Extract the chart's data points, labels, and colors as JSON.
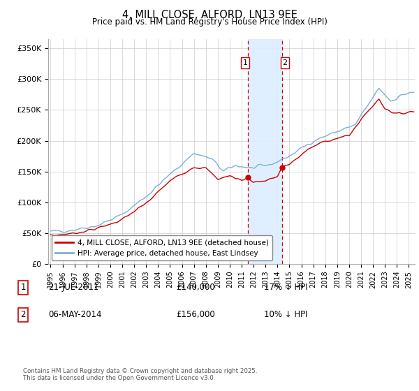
{
  "title": "4, MILL CLOSE, ALFORD, LN13 9EE",
  "subtitle": "Price paid vs. HM Land Registry's House Price Index (HPI)",
  "ylabel_ticks": [
    "£0",
    "£50K",
    "£100K",
    "£150K",
    "£200K",
    "£250K",
    "£300K",
    "£350K"
  ],
  "ytick_values": [
    0,
    50000,
    100000,
    150000,
    200000,
    250000,
    300000,
    350000
  ],
  "ylim": [
    0,
    365000
  ],
  "xlim_start": 1994.8,
  "xlim_end": 2025.5,
  "line1_color": "#cc0000",
  "line2_color": "#7ab0d4",
  "shade_color": "#ddeeff",
  "vline_color": "#cc0000",
  "marker1_x": 2011.55,
  "marker2_x": 2014.37,
  "marker1_y": 140000,
  "marker2_y": 156000,
  "legend_label1": "4, MILL CLOSE, ALFORD, LN13 9EE (detached house)",
  "legend_label2": "HPI: Average price, detached house, East Lindsey",
  "table_rows": [
    {
      "num": "1",
      "date": "21-JUL-2011",
      "price": "£140,000",
      "hpi": "17% ↓ HPI"
    },
    {
      "num": "2",
      "date": "06-MAY-2014",
      "price": "£156,000",
      "hpi": "10% ↓ HPI"
    }
  ],
  "footer": "Contains HM Land Registry data © Crown copyright and database right 2025.\nThis data is licensed under the Open Government Licence v3.0.",
  "grid_color": "#cccccc",
  "hpi_base": {
    "1995.0": 52000,
    "1997.0": 56000,
    "1999.0": 63000,
    "2001.0": 80000,
    "2003.0": 110000,
    "2005.0": 145000,
    "2007.0": 180000,
    "2008.5": 170000,
    "2009.5": 150000,
    "2010.5": 160000,
    "2012.0": 155000,
    "2013.5": 162000,
    "2015.0": 175000,
    "2017.0": 200000,
    "2019.0": 215000,
    "2020.5": 225000,
    "2021.5": 255000,
    "2022.5": 285000,
    "2023.5": 265000,
    "2024.5": 275000,
    "2025.4": 278000
  },
  "price_base": {
    "1995.0": 46000,
    "1997.0": 50000,
    "1999.0": 58000,
    "2001.0": 72000,
    "2003.0": 98000,
    "2005.0": 135000,
    "2007.0": 158000,
    "2008.0": 155000,
    "2009.0": 138000,
    "2010.0": 143000,
    "2011.0": 136000,
    "2011.55": 140000,
    "2012.0": 133000,
    "2013.0": 135000,
    "2014.0": 142000,
    "2014.37": 156000,
    "2015.0": 162000,
    "2016.5": 185000,
    "2018.0": 200000,
    "2020.0": 208000,
    "2021.0": 235000,
    "2022.5": 268000,
    "2023.0": 253000,
    "2024.0": 243000,
    "2025.3": 248000
  },
  "hpi_noise_seed": 42,
  "price_noise_seed": 7,
  "hpi_noise_scale": 3500,
  "price_noise_scale": 2500
}
